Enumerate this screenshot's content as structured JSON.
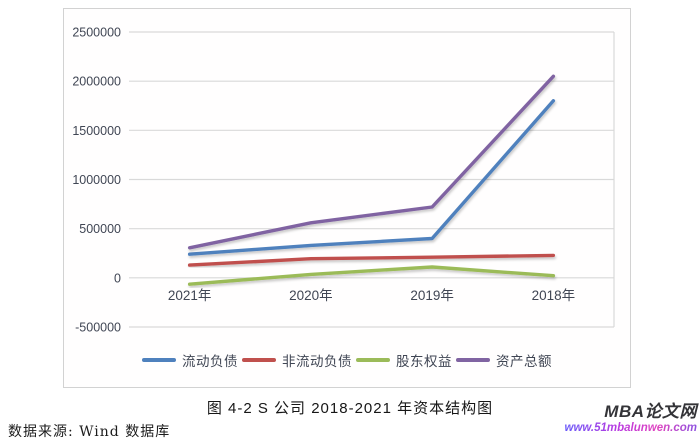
{
  "chart_data": {
    "type": "line",
    "title": "",
    "categories": [
      "2021年",
      "2020年",
      "2019年",
      "2018年"
    ],
    "series": [
      {
        "name": "流动负债",
        "color": "#4F81BD",
        "values": [
          240000,
          330000,
          400000,
          1800000
        ]
      },
      {
        "name": "非流动负债",
        "color": "#C0504D",
        "values": [
          130000,
          195000,
          210000,
          228000
        ]
      },
      {
        "name": "股东权益",
        "color": "#9BBB59",
        "values": [
          -65000,
          35000,
          110000,
          22000
        ]
      },
      {
        "name": "资产总额",
        "color": "#8064A2",
        "values": [
          305000,
          560000,
          720000,
          2050000
        ]
      }
    ],
    "ylim": [
      -500000,
      2500000
    ],
    "ytick_step": 500000,
    "yticks": [
      "2500000",
      "2000000",
      "1500000",
      "1000000",
      "500000",
      "0",
      "-500000"
    ],
    "grid": true,
    "legend_position": "bottom"
  },
  "caption": "图 4-2 S 公司 2018-2021 年资本结构图",
  "source_note": "数据来源: Wind 数据库",
  "watermark": {
    "brand": "MBA论文网",
    "url": "www.51mbalunwen.com"
  },
  "colors": {
    "gridline": "#d9d9d9",
    "axis_text": "#404654",
    "frame_border": "#d2d2d2"
  }
}
